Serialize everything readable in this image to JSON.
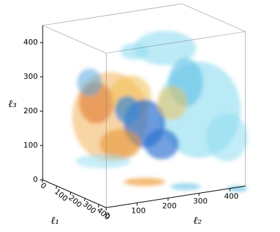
{
  "chart_data": {
    "type": "volume",
    "x_label": "ℓ₁",
    "y_label": "ℓ₂",
    "z_label": "ℓ₃",
    "xlim": [
      0,
      450
    ],
    "ylim": [
      0,
      450
    ],
    "zlim": [
      0,
      450
    ],
    "xticks": [
      0,
      100,
      200,
      300,
      400
    ],
    "yticks": [
      0,
      100,
      200,
      300,
      400
    ],
    "zticks": [
      0,
      100,
      200,
      300,
      400
    ]
  }
}
